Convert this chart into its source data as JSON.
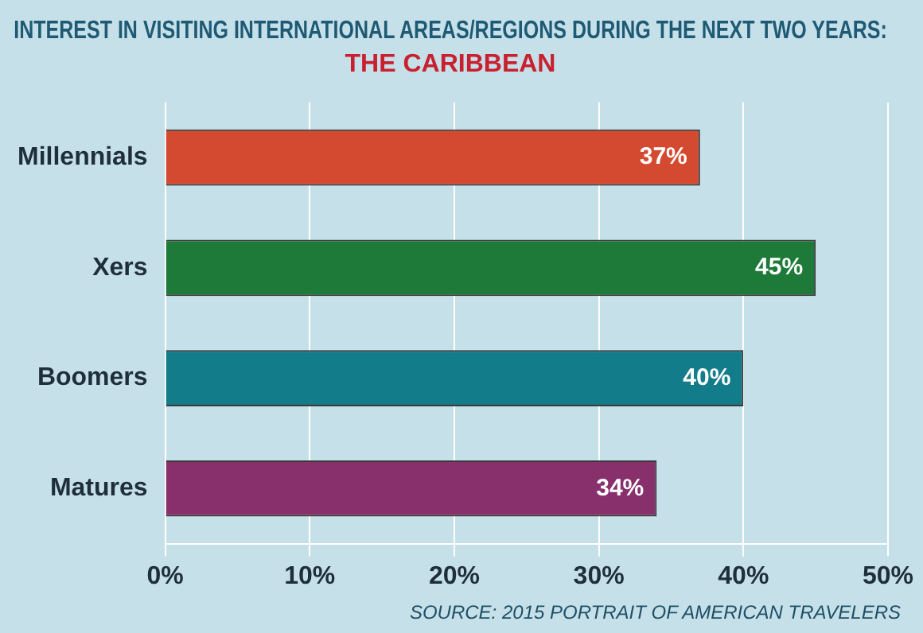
{
  "chart_data": {
    "type": "bar",
    "orientation": "horizontal",
    "title": "INTEREST IN VISITING INTERNATIONAL AREAS/REGIONS DURING THE NEXT TWO YEARS:",
    "subtitle": "THE CARIBBEAN",
    "categories": [
      "Millennials",
      "Xers",
      "Boomers",
      "Matures"
    ],
    "values": [
      37,
      45,
      40,
      34
    ],
    "colors": [
      "#d44a30",
      "#1d7a38",
      "#137c8a",
      "#87306c"
    ],
    "value_labels": [
      "37%",
      "45%",
      "40%",
      "34%"
    ],
    "xlim": [
      0,
      50
    ],
    "xticks": [
      {
        "value": 0,
        "label": "0%"
      },
      {
        "value": 10,
        "label": "10%"
      },
      {
        "value": 20,
        "label": "20%"
      },
      {
        "value": 30,
        "label": "30%"
      },
      {
        "value": 40,
        "label": "40%"
      },
      {
        "value": 50,
        "label": "50%"
      }
    ],
    "grid": "x",
    "legend": false,
    "annotations": [
      "SOURCE: 2015 PORTRAIT OF AMERICAN TRAVELERS"
    ]
  }
}
